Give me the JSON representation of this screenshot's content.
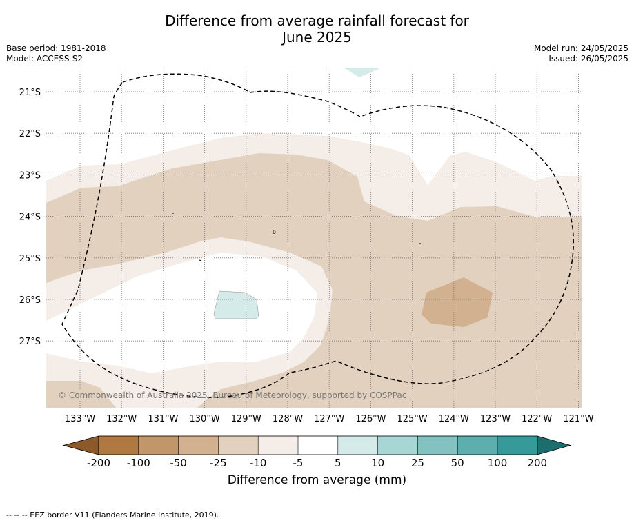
{
  "title_line1": "Difference from average rainfall forecast for",
  "title_line2": "June 2025",
  "left_meta": {
    "base_period": "Base period: 1981-2018",
    "model": "Model: ACCESS-S2"
  },
  "right_meta": {
    "model_run": "Model run: 24/05/2025",
    "issued": "Issued: 26/05/2025"
  },
  "map": {
    "lon_labels": [
      "133°W",
      "132°W",
      "131°W",
      "130°W",
      "129°W",
      "128°W",
      "127°W",
      "126°W",
      "125°W",
      "124°W",
      "123°W",
      "122°W",
      "121°W"
    ],
    "lat_labels": [
      "21°S",
      "22°S",
      "23°S",
      "24°S",
      "25°S",
      "26°S",
      "27°S"
    ],
    "copyright": "© Commonwealth of Australia 2025, Bureau of Meteorology, supported by COSPPac",
    "border_style": "dashed",
    "colors": {
      "neg5_10": "#f4ede8",
      "neg10_25": "#e3d1bf",
      "neg25_50": "#d2b190",
      "near_avg": "#ffffff",
      "pos5_10": "#d4ebea"
    }
  },
  "colorbar": {
    "ticks": [
      "-200",
      "-100",
      "-50",
      "-25",
      "-10",
      "-5",
      "5",
      "10",
      "25",
      "50",
      "100",
      "200"
    ],
    "colors": [
      "#8c5a2a",
      "#af7941",
      "#c1976a",
      "#d2b190",
      "#e3d1bf",
      "#f4ede8",
      "#ffffff",
      "#d4ebea",
      "#a8d6d4",
      "#83c2c0",
      "#5eaead",
      "#36999a",
      "#1c6e6e"
    ],
    "label": "Difference from average (mm)"
  },
  "footnote": "--  --  -- EEZ border V11 (Flanders Marine Institute, 2019)."
}
